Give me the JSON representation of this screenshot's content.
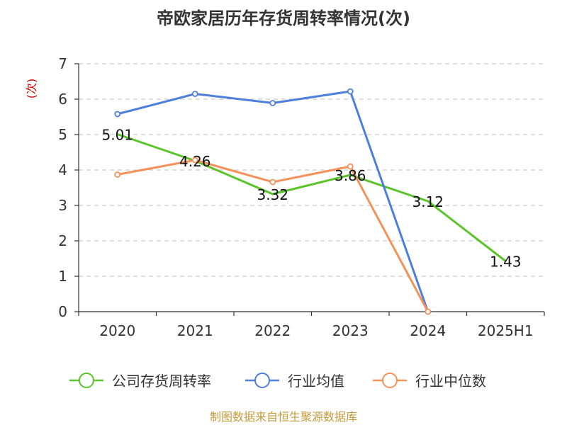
{
  "chart_data": {
    "type": "line",
    "title": "帝欧家居历年存货周转率情况(次)",
    "ylabel": "(次)",
    "categories": [
      "2020",
      "2021",
      "2022",
      "2023",
      "2024",
      "2025H1"
    ],
    "ylim": [
      0,
      7
    ],
    "yticks": [
      "0",
      "1",
      "2",
      "3",
      "4",
      "5",
      "6",
      "7"
    ],
    "grid": true,
    "legend_position": "bottom",
    "series": [
      {
        "name": "公司存货周转率",
        "color": "#5cc42b",
        "values": [
          5.01,
          4.26,
          3.32,
          3.86,
          3.12,
          1.43
        ],
        "labels": [
          "5.01",
          "4.26",
          "3.32",
          "3.86",
          "3.12",
          "1.43"
        ],
        "markers": false
      },
      {
        "name": "行业均值",
        "color": "#4e7fdc",
        "values": [
          5.58,
          6.15,
          5.89,
          6.22,
          0,
          null
        ],
        "markers": true
      },
      {
        "name": "行业中位数",
        "color": "#f5925a",
        "values": [
          3.87,
          4.28,
          3.66,
          4.1,
          0,
          null
        ],
        "markers": true
      }
    ]
  },
  "source_text": "制图数据来自恒生聚源数据库",
  "colors": {
    "source": "#c49a3a",
    "ylabel": "#cc0000",
    "grid": "#cccccc",
    "axis": "#333333"
  }
}
